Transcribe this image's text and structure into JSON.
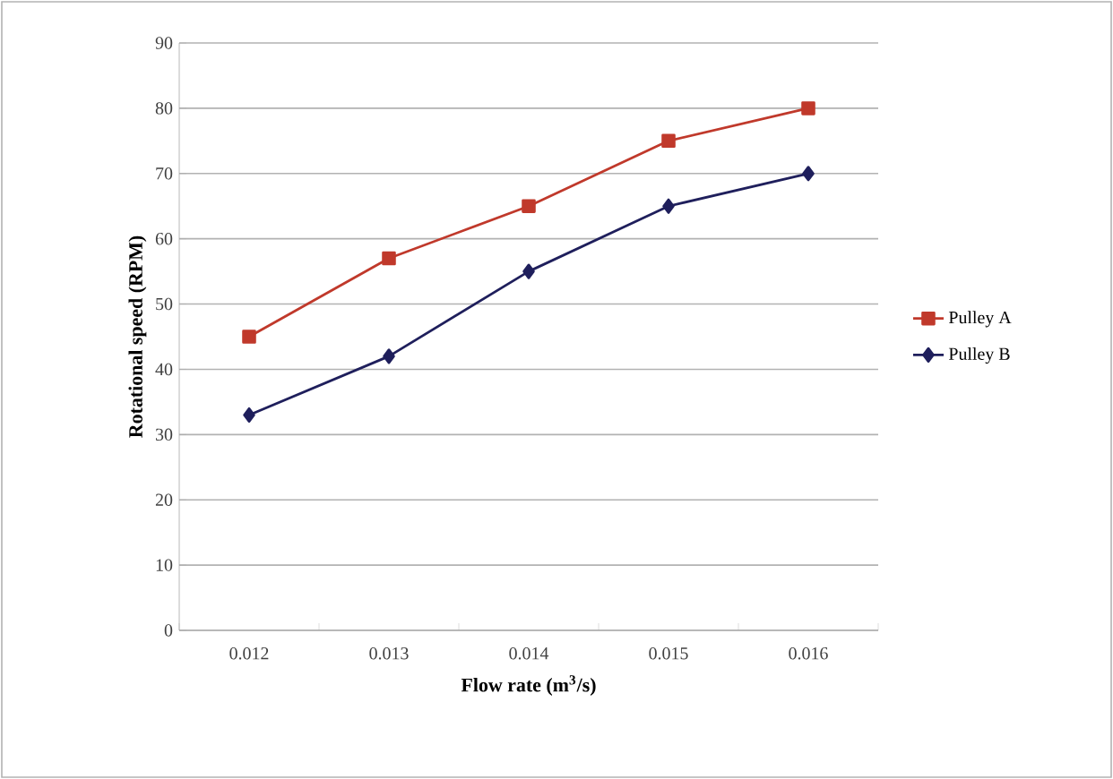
{
  "chart_data": {
    "type": "line",
    "xlabel": "Flow rate (m$^{3}$/s)",
    "ylabel": "Rotational speed (RPM)",
    "categories": [
      "0.012",
      "0.013",
      "0.014",
      "0.015",
      "0.016"
    ],
    "series": [
      {
        "name": "Pulley A",
        "color": "#c0392b",
        "marker": "square",
        "values": [
          45,
          57,
          65,
          75,
          80
        ]
      },
      {
        "name": "Pulley B",
        "color": "#1f1f5c",
        "marker": "diamond",
        "values": [
          33,
          42,
          55,
          65,
          70
        ]
      }
    ],
    "ylim": [
      0,
      90
    ],
    "yticks": [
      0,
      10,
      20,
      30,
      40,
      50,
      60,
      70,
      80,
      90
    ],
    "grid": "y",
    "legend": "right",
    "line_style": "solid"
  }
}
